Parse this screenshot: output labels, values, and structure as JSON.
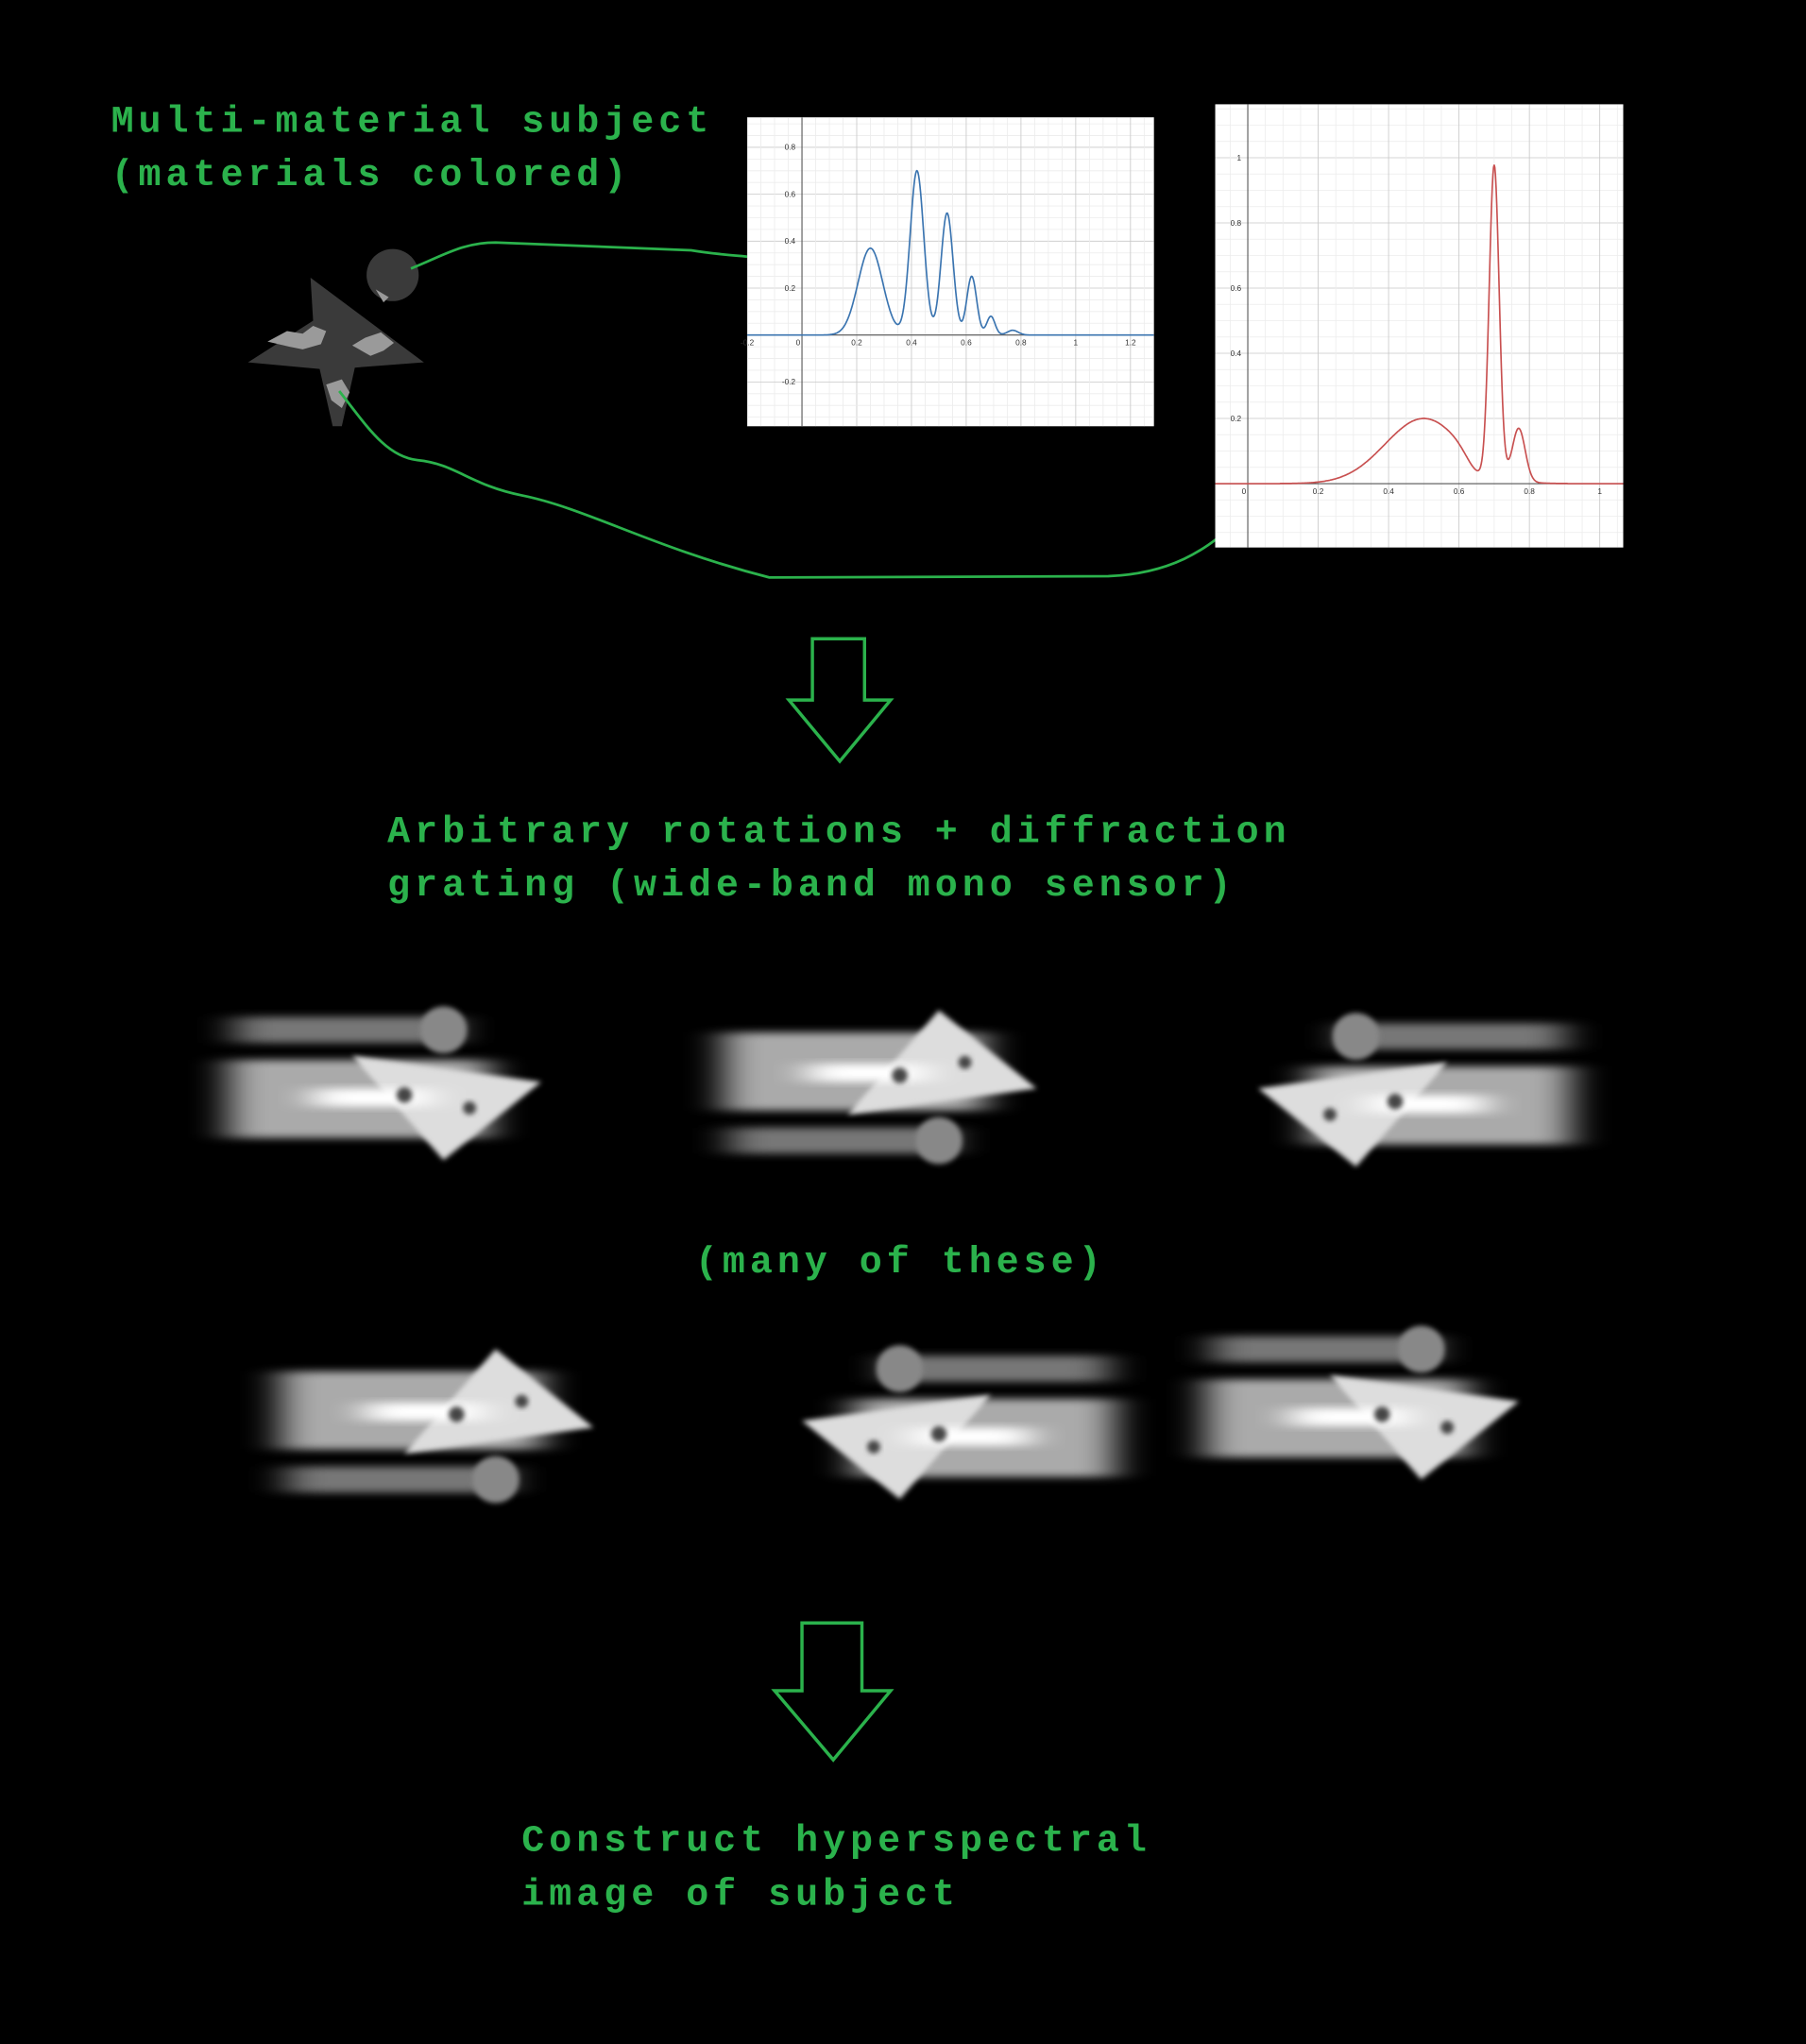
{
  "captions": {
    "subject": [
      "Multi-material subject",
      "(materials colored)"
    ],
    "rotations": [
      "Arbitrary rotations + diffraction",
      "grating (wide-band mono sensor)"
    ],
    "many": "(many of these)",
    "construct": [
      "Construct hyperspectral",
      "image of subject"
    ]
  },
  "plots": [
    {
      "xticks": [
        -0.2,
        0,
        0.2,
        0.4,
        0.6,
        0.8,
        1,
        1.2
      ],
      "yticks": [
        0.8,
        0.6,
        0.4,
        0.2,
        -0.2
      ]
    },
    {
      "xticks": [
        0,
        0.2,
        0.4,
        0.6,
        0.8,
        1
      ],
      "yticks": [
        1,
        0.8,
        0.6,
        0.4,
        0.2
      ]
    }
  ]
}
